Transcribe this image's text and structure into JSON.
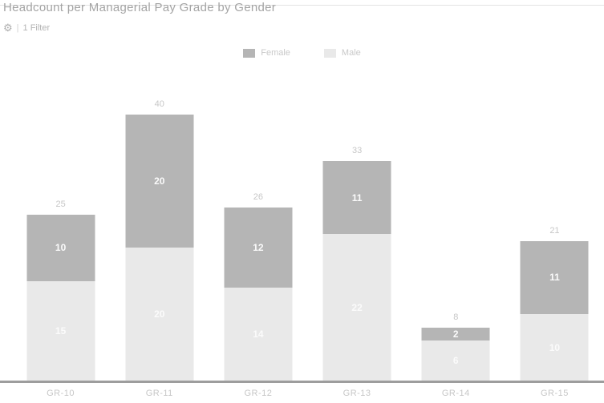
{
  "header": {
    "title": "Headcount per Managerial Pay Grade by Gender",
    "filter_bar": {
      "icon": "gear-icon",
      "separator": "|",
      "label": "1 Filter"
    }
  },
  "legend": [
    {
      "label": "Female",
      "color": "#b5b5b5"
    },
    {
      "label": "Male",
      "color": "#e9e9e9"
    }
  ],
  "chart_data": {
    "type": "bar",
    "stacked": true,
    "title": "Headcount per Managerial Pay Grade by Gender",
    "categories": [
      "GR-10",
      "GR-11",
      "GR-12",
      "GR-13",
      "GR-14",
      "GR-15"
    ],
    "series": [
      {
        "name": "Female",
        "color": "#b5b5b5",
        "values": [
          10,
          20,
          12,
          11,
          2,
          11
        ]
      },
      {
        "name": "Male",
        "color": "#e9e9e9",
        "values": [
          15,
          20,
          14,
          22,
          6,
          10
        ]
      }
    ],
    "totals": [
      25,
      40,
      26,
      33,
      8,
      21
    ],
    "xlabel": "",
    "ylabel": "",
    "ylim": [
      0,
      45
    ],
    "grid": false,
    "legend_position": "top",
    "total_labels": true,
    "segment_labels": true
  },
  "colors": {
    "female": "#b5b5b5",
    "male": "#e9e9e9",
    "title_text": "#a4a4a4",
    "total_label_text": "#c7c7c7",
    "segment_label_text": "#fbfbfb",
    "axis_line": "#9d9d9d",
    "tick_text": "#c7c7c7"
  }
}
